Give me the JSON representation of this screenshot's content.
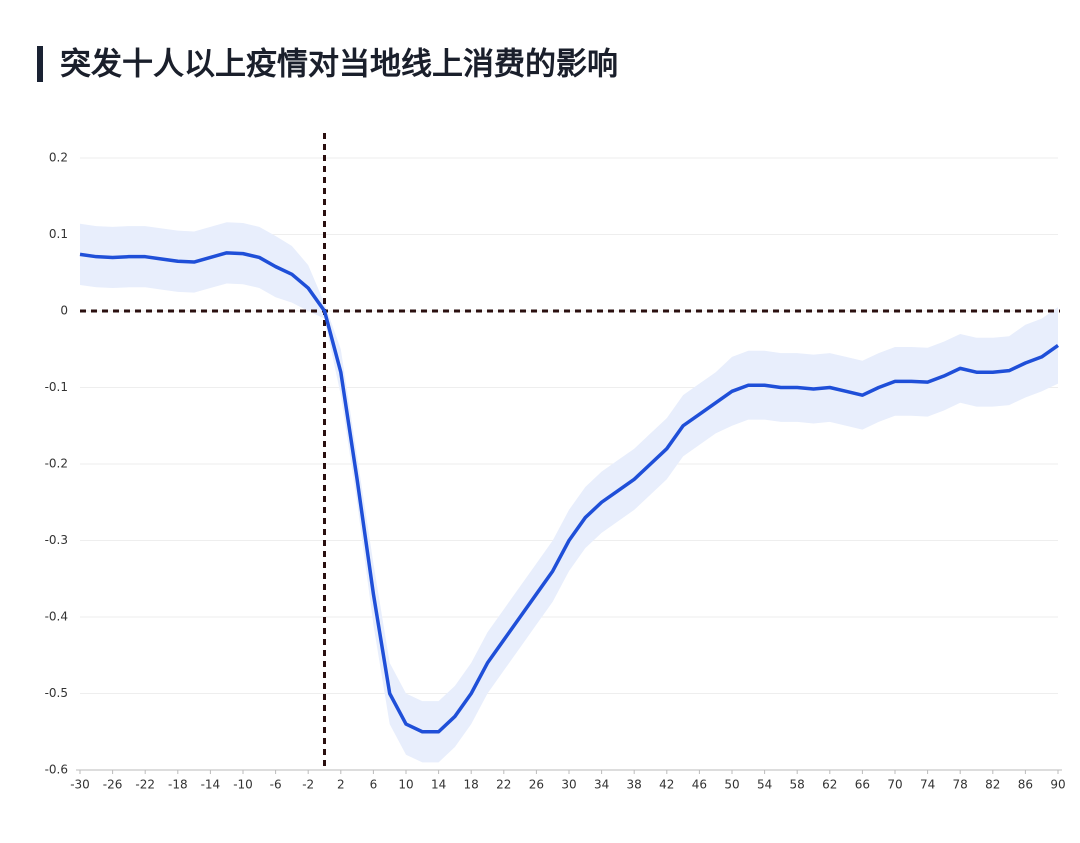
{
  "chart_data": {
    "type": "line",
    "title": "突发十人以上疫情对当地线上消费的影响",
    "x": [
      -30,
      -28,
      -26,
      -24,
      -22,
      -20,
      -18,
      -16,
      -14,
      -12,
      -10,
      -8,
      -6,
      -4,
      -2,
      0,
      2,
      4,
      6,
      8,
      10,
      12,
      14,
      16,
      18,
      20,
      22,
      24,
      26,
      28,
      30,
      32,
      34,
      36,
      38,
      40,
      42,
      44,
      46,
      48,
      50,
      52,
      54,
      56,
      58,
      60,
      62,
      64,
      66,
      68,
      70,
      72,
      74,
      76,
      78,
      80,
      82,
      84,
      86,
      88,
      90
    ],
    "values": [
      0.074,
      0.071,
      0.07,
      0.071,
      0.071,
      0.068,
      0.065,
      0.064,
      0.07,
      0.076,
      0.075,
      0.07,
      0.058,
      0.048,
      0.03,
      0,
      -0.08,
      -0.22,
      -0.37,
      -0.5,
      -0.54,
      -0.55,
      -0.55,
      -0.53,
      -0.5,
      -0.46,
      -0.43,
      -0.4,
      -0.37,
      -0.34,
      -0.3,
      -0.27,
      -0.25,
      -0.235,
      -0.22,
      -0.2,
      -0.18,
      -0.15,
      -0.135,
      -0.12,
      -0.105,
      -0.097,
      -0.097,
      -0.1,
      -0.1,
      -0.102,
      -0.1,
      -0.105,
      -0.11,
      -0.1,
      -0.092,
      -0.092,
      -0.093,
      -0.085,
      -0.075,
      -0.08,
      -0.08,
      -0.078,
      -0.068,
      -0.06,
      -0.045
    ],
    "upper": [
      0.114,
      0.111,
      0.11,
      0.111,
      0.111,
      0.108,
      0.105,
      0.104,
      0.11,
      0.116,
      0.115,
      0.11,
      0.098,
      0.085,
      0.06,
      0.01,
      -0.05,
      -0.19,
      -0.33,
      -0.46,
      -0.5,
      -0.51,
      -0.51,
      -0.49,
      -0.46,
      -0.42,
      -0.39,
      -0.36,
      -0.33,
      -0.3,
      -0.26,
      -0.23,
      -0.21,
      -0.195,
      -0.18,
      -0.16,
      -0.14,
      -0.11,
      -0.095,
      -0.08,
      -0.06,
      -0.052,
      -0.052,
      -0.055,
      -0.055,
      -0.057,
      -0.055,
      -0.06,
      -0.065,
      -0.055,
      -0.047,
      -0.047,
      -0.048,
      -0.04,
      -0.03,
      -0.035,
      -0.035,
      -0.033,
      -0.018,
      -0.01,
      0.005
    ],
    "lower": [
      0.034,
      0.031,
      0.03,
      0.031,
      0.031,
      0.028,
      0.025,
      0.024,
      0.03,
      0.036,
      0.035,
      0.03,
      0.018,
      0.011,
      0,
      -0.01,
      -0.11,
      -0.25,
      -0.41,
      -0.54,
      -0.58,
      -0.59,
      -0.59,
      -0.57,
      -0.54,
      -0.5,
      -0.47,
      -0.44,
      -0.41,
      -0.38,
      -0.34,
      -0.31,
      -0.29,
      -0.275,
      -0.26,
      -0.24,
      -0.22,
      -0.19,
      -0.175,
      -0.16,
      -0.15,
      -0.142,
      -0.142,
      -0.145,
      -0.145,
      -0.147,
      -0.145,
      -0.15,
      -0.155,
      -0.145,
      -0.137,
      -0.137,
      -0.138,
      -0.13,
      -0.12,
      -0.125,
      -0.125,
      -0.123,
      -0.113,
      -0.105,
      -0.095
    ],
    "color": "#1f4fd8",
    "band_color": "#e8eefc",
    "reference_color": "#2a0f0f",
    "reference_x": 0,
    "reference_y": 0,
    "xlim": [
      -30,
      90
    ],
    "xticks": [
      -30,
      -26,
      -22,
      -18,
      -14,
      -10,
      -6,
      -2,
      2,
      6,
      10,
      14,
      18,
      22,
      26,
      30,
      34,
      38,
      42,
      46,
      50,
      54,
      58,
      62,
      66,
      70,
      74,
      78,
      82,
      86,
      90
    ],
    "ylim": [
      -0.6,
      0.2
    ],
    "yticks": [
      0.2,
      0.1,
      0,
      -0.1,
      -0.2,
      -0.3,
      -0.4,
      -0.5,
      -0.6
    ],
    "grid": true
  }
}
